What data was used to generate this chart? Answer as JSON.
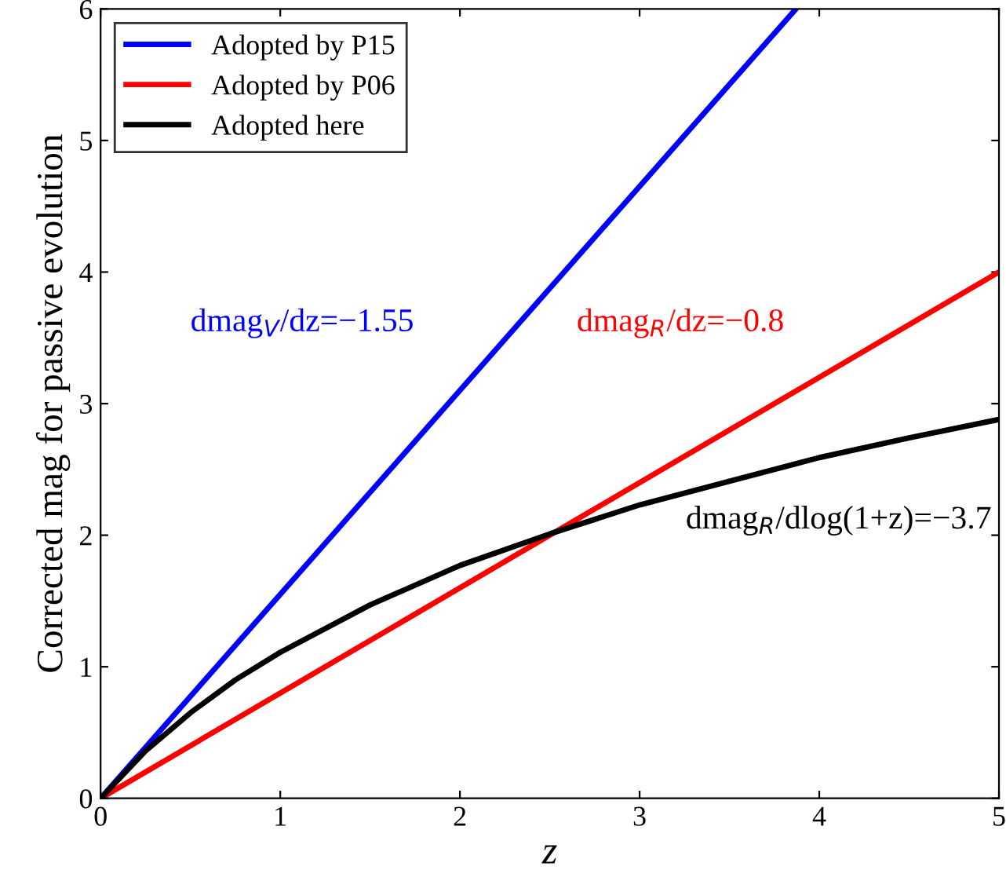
{
  "chart_data": {
    "type": "line",
    "xlabel": "z",
    "ylabel": "Corrected mag for passive evolution",
    "xlim": [
      0,
      5
    ],
    "ylim": [
      0,
      6
    ],
    "xticks": [
      0,
      1,
      2,
      3,
      4,
      5
    ],
    "yticks": [
      0,
      1,
      2,
      3,
      4,
      5,
      6
    ],
    "grid": false,
    "legend": "top left",
    "marker": "none",
    "line_style": "solid",
    "series": [
      {
        "name": "Adopted by P15",
        "color": "#0000ff",
        "x": [
          0,
          3.87
        ],
        "values": [
          0,
          6
        ]
      },
      {
        "name": "Adopted by P06",
        "color": "#ff0000",
        "x": [
          0,
          5
        ],
        "values": [
          0,
          4
        ]
      },
      {
        "name": "Adopted here",
        "color": "#000000",
        "x": [
          0,
          0.25,
          0.5,
          0.75,
          1,
          1.5,
          2,
          2.5,
          3,
          3.5,
          4,
          4.5,
          5
        ],
        "values": [
          0,
          0.36,
          0.65,
          0.9,
          1.11,
          1.47,
          1.77,
          2.01,
          2.23,
          2.41,
          2.59,
          2.74,
          2.88
        ]
      }
    ],
    "annotations": [
      "dmag$_{V}$/dz=−1.55",
      "dmag$_{R}$/dz=−0.8",
      "dmag$_{R}$/dlog(1+z)=−3.7"
    ]
  }
}
